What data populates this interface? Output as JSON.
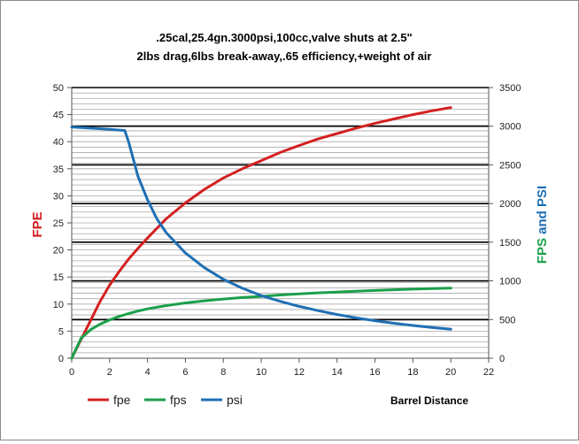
{
  "chart_data": {
    "type": "line",
    "title_line1": ".25cal,25.4gn.3000psi,100cc,valve shuts at 2.5\"",
    "title_line2": "2lbs drag,6lbs break-away,.65 efficiency,+weight of air",
    "xlabel": "Barrel Distance",
    "ylabel_left": "FPE",
    "ylabel_right_part1": "FPS",
    "ylabel_right_part2": " and ",
    "ylabel_right_part3": "PSI",
    "x_ticks": [
      0,
      2,
      4,
      6,
      8,
      10,
      12,
      14,
      16,
      18,
      20,
      22
    ],
    "y_left_ticks": [
      0,
      5,
      10,
      15,
      20,
      25,
      30,
      35,
      40,
      45,
      50
    ],
    "y_right_ticks": [
      0,
      500,
      1000,
      1500,
      2000,
      2500,
      3000,
      3500
    ],
    "xlim": [
      0,
      22
    ],
    "ylim_left": [
      0,
      50
    ],
    "ylim_right": [
      0,
      3500
    ],
    "series": [
      {
        "name": "fpe",
        "axis": "left",
        "color": "#d42020",
        "x": [
          0,
          0.5,
          1,
          1.5,
          2,
          2.5,
          3,
          3.5,
          4,
          5,
          6,
          7,
          8,
          9,
          10,
          11,
          12,
          13,
          14,
          15,
          16,
          17,
          18,
          19,
          20
        ],
        "y": [
          0,
          3.5,
          7,
          10.5,
          13.5,
          16,
          18.3,
          20.3,
          22.2,
          25.8,
          28.7,
          31.2,
          33.3,
          35.0,
          36.5,
          38.0,
          39.3,
          40.5,
          41.5,
          42.5,
          43.4,
          44.2,
          45.0,
          45.7,
          46.3
        ]
      },
      {
        "name": "fps",
        "axis": "right",
        "color": "#1aa04a",
        "x": [
          0,
          0.5,
          1,
          1.5,
          2,
          2.5,
          3,
          3.5,
          4,
          5,
          6,
          7,
          8,
          9,
          10,
          11,
          12,
          13,
          14,
          15,
          16,
          17,
          18,
          19,
          20
        ],
        "y": [
          0,
          260,
          370,
          440,
          495,
          540,
          578,
          610,
          638,
          680,
          715,
          742,
          765,
          785,
          800,
          818,
          832,
          845,
          856,
          866,
          876,
          885,
          893,
          900,
          906
        ]
      },
      {
        "name": "psi",
        "axis": "right",
        "color": "#1f6fb4",
        "x": [
          0,
          1,
          2,
          2.5,
          2.8,
          3,
          3.5,
          4,
          4.5,
          5,
          6,
          7,
          8,
          9,
          10,
          11,
          12,
          13,
          14,
          15,
          16,
          17,
          18,
          19,
          20
        ],
        "y": [
          2990,
          2975,
          2960,
          2950,
          2945,
          2800,
          2350,
          2050,
          1800,
          1620,
          1360,
          1170,
          1020,
          905,
          810,
          735,
          670,
          615,
          565,
          522,
          485,
          452,
          423,
          398,
          375
        ]
      }
    ],
    "grid": true,
    "legend_position": "bottom-left"
  }
}
